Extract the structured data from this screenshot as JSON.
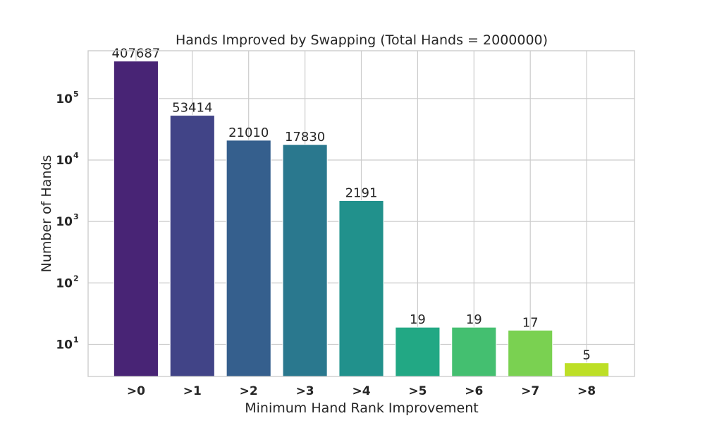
{
  "chart_data": {
    "type": "bar",
    "title": "Hands Improved by Swapping (Total Hands = 2000000)",
    "xlabel": "Minimum Hand Rank Improvement",
    "ylabel": "Number of Hands",
    "yscale": "log",
    "ylim": [
      3,
      600000
    ],
    "grid": true,
    "categories": [
      ">0",
      ">1",
      ">2",
      ">3",
      ">4",
      ">5",
      ">6",
      ">7",
      ">8"
    ],
    "values": [
      407687,
      53414,
      21010,
      17830,
      2191,
      19,
      19,
      17,
      5
    ],
    "data_labels": [
      "407687",
      "53414",
      "21010",
      "17830",
      "2191",
      "19",
      "19",
      "17",
      "5"
    ],
    "colors": [
      "#482475",
      "#414487",
      "#355f8d",
      "#2a788e",
      "#21918c",
      "#22a884",
      "#44bf70",
      "#7ad151",
      "#bddf26"
    ],
    "yticks": [
      {
        "base": "10",
        "exp": "1",
        "value": 10
      },
      {
        "base": "10",
        "exp": "2",
        "value": 100
      },
      {
        "base": "10",
        "exp": "3",
        "value": 1000
      },
      {
        "base": "10",
        "exp": "4",
        "value": 10000
      },
      {
        "base": "10",
        "exp": "5",
        "value": 100000
      }
    ]
  }
}
